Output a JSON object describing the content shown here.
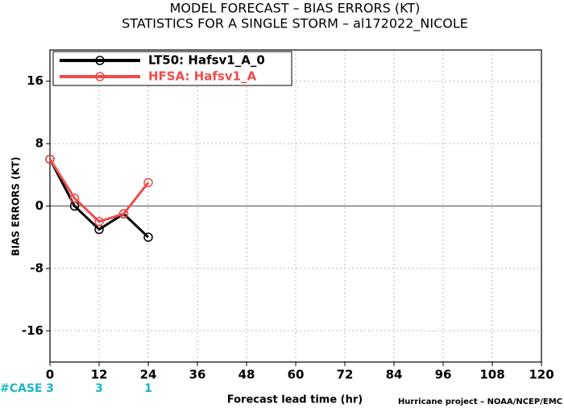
{
  "chart_data": {
    "type": "line",
    "title": [
      "MODEL FORECAST – BIAS ERRORS (KT)",
      "STATISTICS FOR A SINGLE STORM – al172022_NICOLE"
    ],
    "x_label": "Forecast lead time (hr)",
    "y_label": "BIAS ERRORS (KT)",
    "x": [
      0,
      6,
      12,
      18,
      24
    ],
    "series": [
      {
        "name": "LT50: Hafsv1_A_0",
        "color": "#000000",
        "values": [
          6,
          0,
          -3,
          -1,
          -4
        ]
      },
      {
        "name": "HFSA: Hafsv1_A",
        "color": "#f04a4a",
        "values": [
          6,
          1,
          -2,
          -1,
          3
        ]
      }
    ],
    "xlim": [
      0,
      120
    ],
    "xticks": [
      0,
      12,
      24,
      36,
      48,
      60,
      72,
      84,
      96,
      108,
      120
    ],
    "ylim": [
      -20,
      20
    ],
    "yticks": [
      -16,
      -8,
      0,
      8,
      16
    ],
    "grid": true,
    "legend": "upper-left",
    "case_label": "#CASE",
    "case_x": [
      0,
      12,
      24
    ],
    "case_counts": [
      3,
      3,
      1
    ],
    "footer": "Hurricane project – NOAA/NCEP/EMC"
  }
}
